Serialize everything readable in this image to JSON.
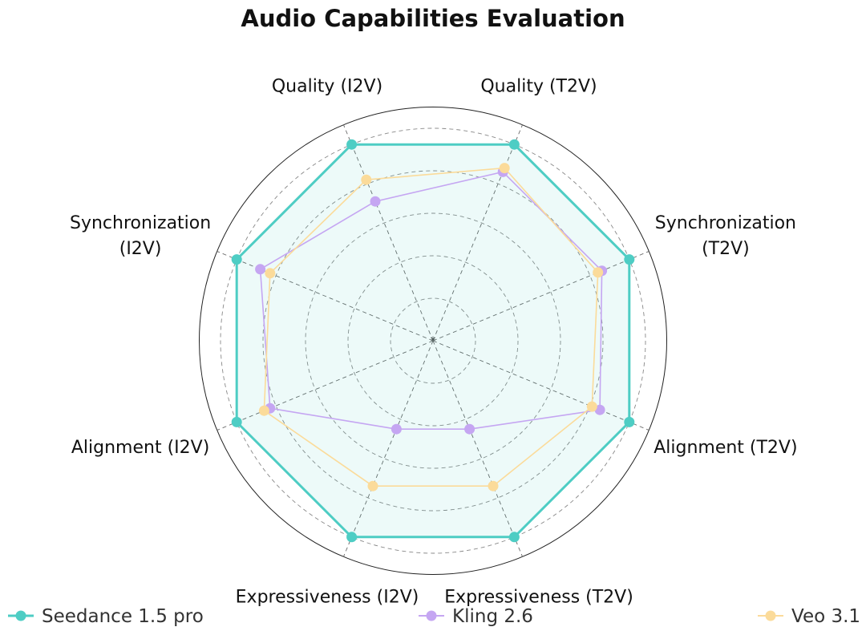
{
  "chart_data": {
    "type": "radar",
    "title": "Audio Capabilities Evaluation",
    "axes": [
      {
        "lines": [
          "Quality (T2V)"
        ]
      },
      {
        "lines": [
          "Synchronization",
          "(T2V)"
        ]
      },
      {
        "lines": [
          "Alignment (T2V)"
        ]
      },
      {
        "lines": [
          "Expressiveness (T2V)"
        ]
      },
      {
        "lines": [
          "Expressiveness (I2V)"
        ]
      },
      {
        "lines": [
          "Alignment (I2V)"
        ]
      },
      {
        "lines": [
          "Synchronization",
          "(I2V)"
        ]
      },
      {
        "lines": [
          "Quality (I2V)"
        ]
      }
    ],
    "rlim": [
      0,
      1.1
    ],
    "rticks": [
      0.2,
      0.4,
      0.6,
      0.8,
      1.0
    ],
    "grid": true,
    "legend_position": "bottom",
    "series": [
      {
        "name": "Seedance 1.5 pro",
        "color": "#4ecdc4",
        "fill": true,
        "values": [
          1.0,
          1.0,
          1.0,
          1.0,
          1.0,
          1.0,
          1.0,
          1.0
        ]
      },
      {
        "name": "Kling 2.6",
        "color": "#c5a6f2",
        "fill": false,
        "values": [
          0.86,
          0.86,
          0.85,
          0.45,
          0.45,
          0.83,
          0.88,
          0.71
        ]
      },
      {
        "name": "Veo 3.1",
        "color": "#fbdb9a",
        "fill": false,
        "values": [
          0.88,
          0.84,
          0.81,
          0.74,
          0.74,
          0.86,
          0.83,
          0.82
        ]
      }
    ]
  }
}
